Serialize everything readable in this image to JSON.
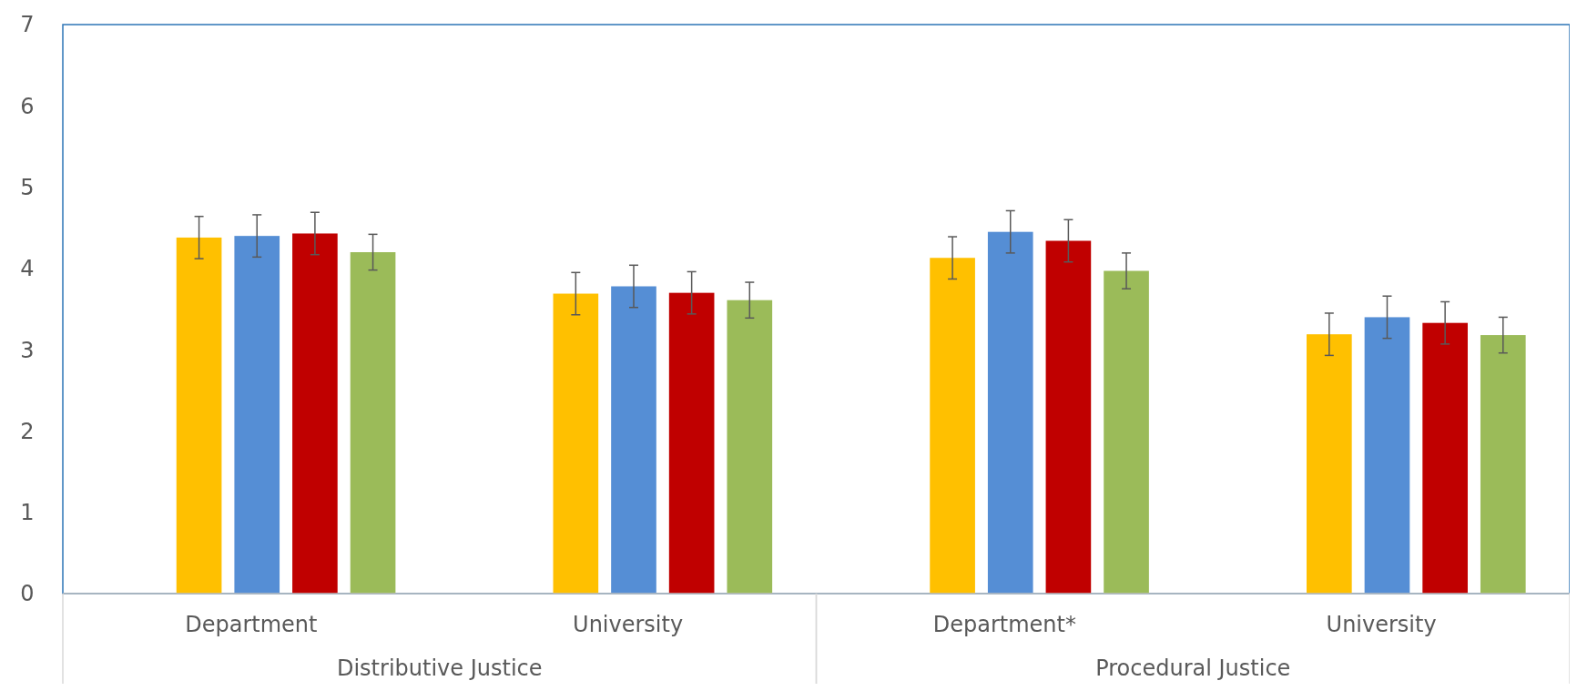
{
  "chart_data": {
    "type": "bar",
    "categories": [
      "Department",
      "University",
      "Department*",
      "University"
    ],
    "series": [
      {
        "color": "#ffc000",
        "values": [
          4.38,
          3.69,
          4.13,
          3.19
        ],
        "errors": [
          0.26,
          0.26,
          0.26,
          0.26
        ]
      },
      {
        "color": "#558ed5",
        "values": [
          4.4,
          3.78,
          4.45,
          3.4
        ],
        "errors": [
          0.26,
          0.26,
          0.26,
          0.26
        ]
      },
      {
        "color": "#c00000",
        "values": [
          4.43,
          3.7,
          4.34,
          3.33
        ],
        "errors": [
          0.26,
          0.26,
          0.26,
          0.26
        ]
      },
      {
        "color": "#9bbb59",
        "values": [
          4.2,
          3.61,
          3.97,
          3.18
        ],
        "errors": [
          0.22,
          0.22,
          0.22,
          0.22
        ]
      }
    ],
    "annotations": [
      "Distributive Justice",
      "Procedural Justice"
    ],
    "ylim": [
      0,
      7
    ],
    "yticks": [
      0,
      1,
      2,
      3,
      4,
      5,
      6,
      7
    ]
  }
}
